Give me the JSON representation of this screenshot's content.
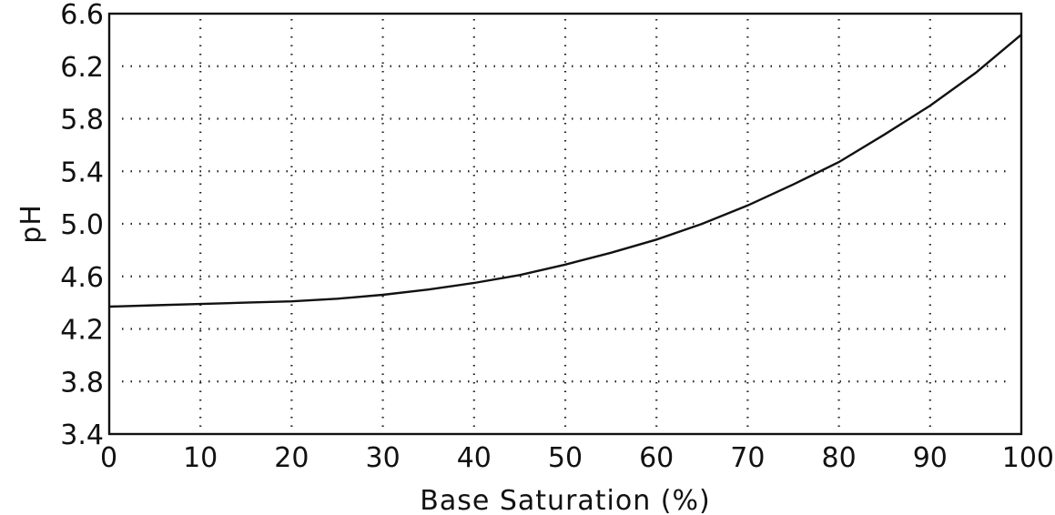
{
  "chart_data": {
    "type": "line",
    "title": "",
    "xlabel": "Base Saturation (%)",
    "ylabel": "pH",
    "xlim": [
      0,
      100
    ],
    "ylim": [
      3.4,
      6.6
    ],
    "grid": true,
    "x_ticks": [
      "0",
      "10",
      "20",
      "30",
      "40",
      "50",
      "60",
      "70",
      "80",
      "90",
      "100"
    ],
    "y_ticks": [
      "3.4",
      "3.8",
      "4.2",
      "4.6",
      "5.0",
      "5.4",
      "5.8",
      "6.2",
      "6.6"
    ],
    "series": [
      {
        "x": [
          0,
          5,
          10,
          15,
          20,
          25,
          30,
          35,
          40,
          45,
          50,
          55,
          60,
          65,
          70,
          75,
          80,
          85,
          90,
          95,
          100
        ],
        "y": [
          4.37,
          4.38,
          4.39,
          4.4,
          4.41,
          4.43,
          4.46,
          4.5,
          4.55,
          4.61,
          4.69,
          4.78,
          4.88,
          5.0,
          5.14,
          5.3,
          5.47,
          5.68,
          5.9,
          6.15,
          6.44
        ]
      }
    ]
  }
}
